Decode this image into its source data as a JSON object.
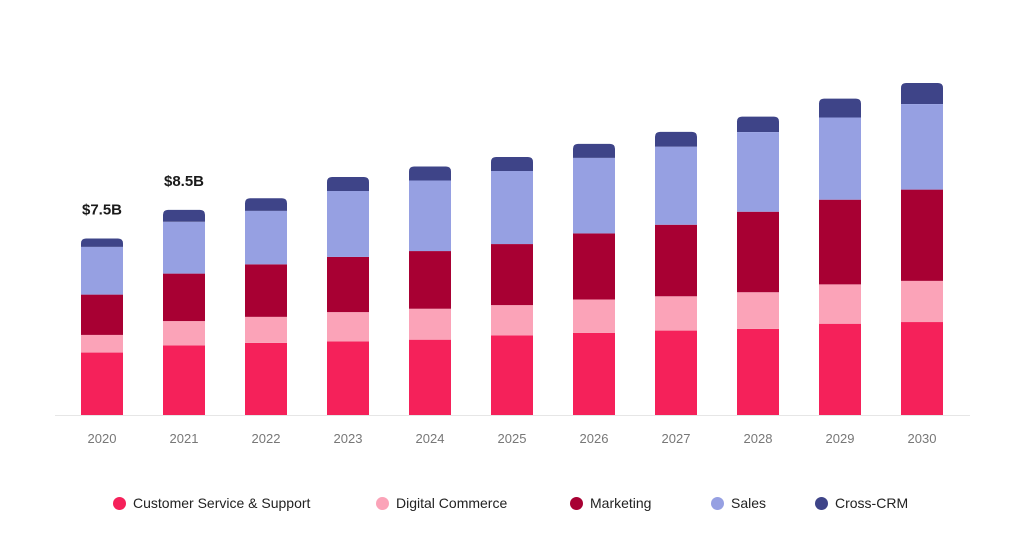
{
  "chart_data": {
    "type": "bar",
    "stacked": true,
    "categories": [
      "2020",
      "2021",
      "2022",
      "2023",
      "2024",
      "2025",
      "2026",
      "2027",
      "2028",
      "2029",
      "2030"
    ],
    "series": [
      {
        "name": "Customer Service & Support",
        "color": "#f5215a",
        "values": [
          4.46,
          4.97,
          5.15,
          5.26,
          5.38,
          5.69,
          5.86,
          6.03,
          6.15,
          6.52,
          6.64
        ]
      },
      {
        "name": "Digital Commerce",
        "color": "#fba3b8",
        "values": [
          1.26,
          1.74,
          1.86,
          2.09,
          2.21,
          2.16,
          2.39,
          2.45,
          2.62,
          2.81,
          2.94
        ]
      },
      {
        "name": "Marketing",
        "color": "#a80033",
        "values": [
          2.88,
          3.39,
          3.75,
          3.94,
          4.12,
          4.36,
          4.72,
          5.11,
          5.75,
          6.05,
          6.52
        ]
      },
      {
        "name": "Sales",
        "color": "#96a0e2",
        "values": [
          3.41,
          3.7,
          3.82,
          4.71,
          5.04,
          5.22,
          5.4,
          5.58,
          5.69,
          5.87,
          6.11
        ]
      },
      {
        "name": "Cross-CRM",
        "color": "#3e4488",
        "values": [
          0.6,
          0.85,
          0.9,
          1.0,
          1.0,
          1.0,
          1.0,
          1.05,
          1.1,
          1.35,
          1.5
        ]
      }
    ],
    "annotations": [
      {
        "category": "2020",
        "text": "$7.5B"
      },
      {
        "category": "2021",
        "text": "$8.5B"
      }
    ],
    "ylim": [
      0,
      25
    ],
    "grid": false,
    "legend_position": "bottom",
    "title": "",
    "xlabel": "",
    "ylabel": ""
  }
}
